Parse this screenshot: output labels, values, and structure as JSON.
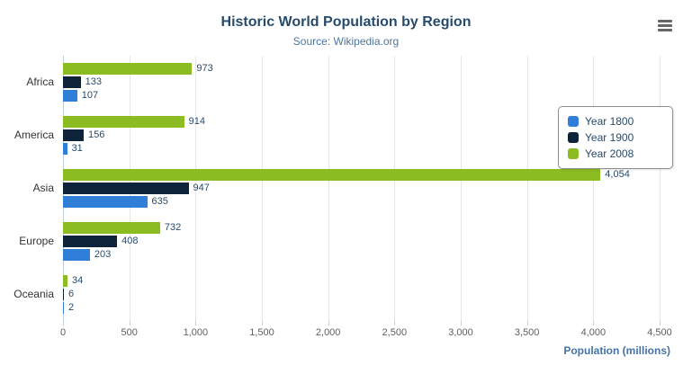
{
  "header": {
    "title": "Historic World Population by Region",
    "subtitle": "Source: Wikipedia.org"
  },
  "menu": {
    "icon": "hamburger-icon"
  },
  "chart_data": {
    "type": "bar",
    "orientation": "horizontal",
    "title": "Historic World Population by Region",
    "subtitle": "Source: Wikipedia.org",
    "categories": [
      "Africa",
      "America",
      "Asia",
      "Europe",
      "Oceania"
    ],
    "series": [
      {
        "name": "Year 1800",
        "color": "#2f7ed8",
        "values": [
          107,
          31,
          635,
          203,
          2
        ]
      },
      {
        "name": "Year 1900",
        "color": "#0d233a",
        "values": [
          133,
          156,
          947,
          408,
          6
        ]
      },
      {
        "name": "Year 2008",
        "color": "#8bbc21",
        "values": [
          973,
          914,
          4054,
          732,
          34
        ]
      }
    ],
    "display_order_top_to_bottom": [
      "Year 2008",
      "Year 1900",
      "Year 1800"
    ],
    "xlabel": "Population (millions)",
    "xlim": [
      0,
      4500
    ],
    "xticks": [
      0,
      500,
      1000,
      1500,
      2000,
      2500,
      3000,
      3500,
      4000,
      4500
    ],
    "grid": true,
    "legend_position": "right",
    "data_labels": true,
    "text_colors": {
      "title": "#274b6d",
      "subtitle": "#4d759e",
      "axis_title": "#4572a7",
      "tick_labels": "#606060",
      "data_labels": "#274b6d"
    }
  }
}
